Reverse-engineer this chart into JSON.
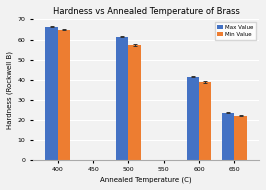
{
  "title": "Hardness vs Annealed Temperature of Brass",
  "xlabel": "Annealed Temperature (C)",
  "ylabel": "Hardness (Rockwell B)",
  "x_tick_labels": [
    "400",
    "450",
    "500",
    "550",
    "600",
    "650"
  ],
  "x_tick_positions": [
    0,
    1,
    2,
    3,
    4,
    5
  ],
  "active_ticks": [
    0,
    2,
    4,
    5
  ],
  "active_labels": [
    "400",
    "500",
    "600",
    "650"
  ],
  "max_values": [
    66.5,
    61.5,
    41.5,
    23.5
  ],
  "min_values": [
    65.0,
    57.5,
    39.0,
    22.0
  ],
  "max_errors": [
    0.4,
    0.4,
    0.4,
    0.4
  ],
  "min_errors": [
    0.4,
    0.5,
    0.5,
    0.4
  ],
  "bar_color_max": "#4472c4",
  "bar_color_min": "#ed7d31",
  "legend_max": "Max Value",
  "legend_min": "Min Value",
  "ylim": [
    0,
    70
  ],
  "yticks": [
    0,
    10,
    20,
    30,
    40,
    50,
    60,
    70
  ],
  "background_color": "#f2f2f2",
  "grid_color": "#ffffff",
  "bar_width": 0.35
}
